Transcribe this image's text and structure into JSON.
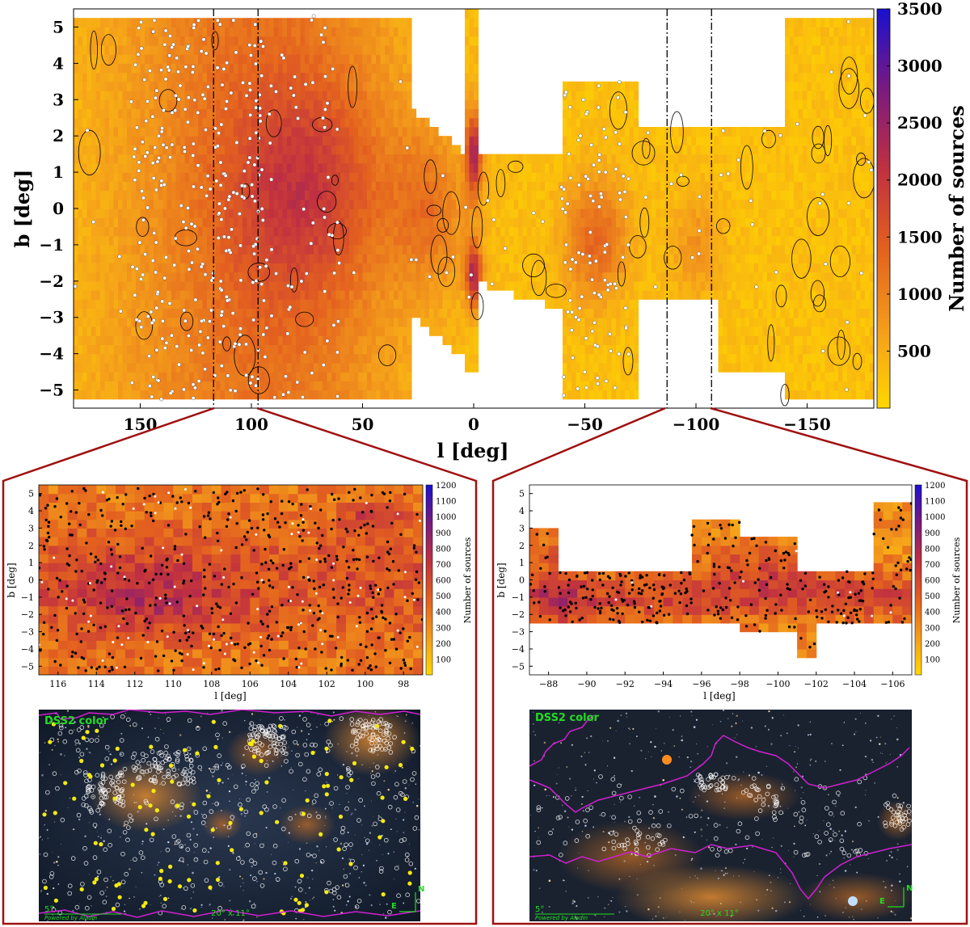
{
  "chart_data": [
    {
      "type": "heatmap",
      "name": "main",
      "xlabel": "l [deg]",
      "ylabel": "b [deg]",
      "colorbar_label": "Number of sources",
      "xlim": [
        180,
        -180
      ],
      "ylim": [
        -5.5,
        5.5
      ],
      "xticks": [
        150,
        100,
        50,
        0,
        -50,
        -100,
        -150
      ],
      "yticks": [
        5,
        4,
        3,
        2,
        1,
        0,
        -1,
        -2,
        -3,
        -4,
        -5
      ],
      "cbar_ticks": [
        500,
        1000,
        1500,
        2000,
        2500,
        3000,
        3500
      ],
      "cbar_range": [
        0,
        3500
      ],
      "zoom_lines_l": [
        117,
        97,
        -87,
        -107
      ],
      "note": "Source-count density map along the Galactic plane with contours and white source markers"
    },
    {
      "type": "heatmap",
      "name": "zoom_left",
      "xlabel": "l [deg]",
      "ylabel": "b [deg]",
      "colorbar_label": "Number of sources",
      "xlim": [
        117,
        97
      ],
      "ylim": [
        -5.5,
        5.5
      ],
      "xticks": [
        116,
        114,
        112,
        110,
        108,
        106,
        104,
        102,
        100,
        98
      ],
      "yticks": [
        5,
        4,
        3,
        2,
        1,
        0,
        -1,
        -2,
        -3,
        -4,
        -5
      ],
      "cbar_ticks": [
        100,
        200,
        300,
        400,
        500,
        600,
        700,
        800,
        900,
        1000,
        1100,
        1200
      ],
      "cbar_range": [
        0,
        1200
      ]
    },
    {
      "type": "heatmap",
      "name": "zoom_right",
      "xlabel": "l [deg]",
      "ylabel": "b [deg]",
      "colorbar_label": "Number of sources",
      "xlim": [
        -87,
        -107
      ],
      "ylim": [
        -5.5,
        5.5
      ],
      "xticks": [
        -88,
        -90,
        -92,
        -94,
        -96,
        -98,
        -100,
        -102,
        -104,
        -106
      ],
      "yticks": [
        5,
        4,
        3,
        2,
        1,
        0,
        -1,
        -2,
        -3,
        -4,
        -5
      ],
      "cbar_ticks": [
        100,
        200,
        300,
        400,
        500,
        600,
        700,
        800,
        900,
        1000,
        1100,
        1200
      ],
      "cbar_range": [
        0,
        1200
      ]
    }
  ],
  "images": {
    "left": {
      "survey": "DSS2 color",
      "credit": "Powered by Aladin",
      "scale": "5°",
      "fov": "20° x 11°",
      "compass_n": "N",
      "compass_e": "E"
    },
    "right": {
      "survey": "DSS2 color",
      "credit": "Powered by Aladin",
      "scale": "5°",
      "fov": "20° x 11°",
      "compass_n": "N",
      "compass_e": "E"
    }
  },
  "colors": {
    "frame": "#a01010",
    "low": "#ffd700",
    "mid": "#e8601a",
    "high": "#1a10c0"
  }
}
